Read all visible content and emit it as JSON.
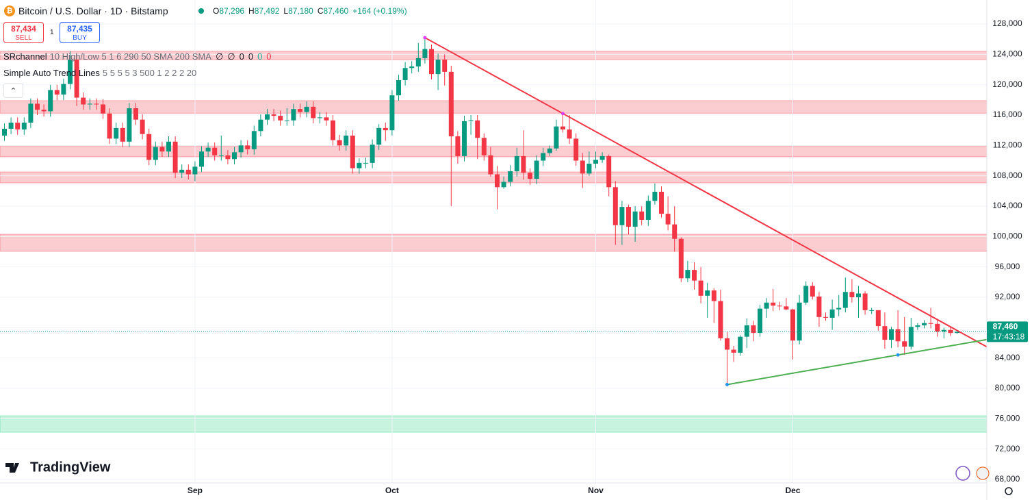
{
  "header": {
    "symbol": "Bitcoin / U.S. Dollar · 1D · Bitstamp",
    "ohlc": [
      {
        "key": "O",
        "value": "87,296"
      },
      {
        "key": "H",
        "value": "87,492"
      },
      {
        "key": "L",
        "value": "87,180"
      },
      {
        "key": "C",
        "value": "87,460"
      }
    ],
    "change": "+164 (+0.19%)"
  },
  "trading_panel": {
    "sell_price": "87,434",
    "sell": "SELL",
    "quantity": "1",
    "buy_price": "87,435",
    "buy": "BUY"
  },
  "indicators": [
    {
      "name": "SRchannel",
      "params": "10 High/Low 5 1 6 290 50 SMA 200 SMA",
      "outputs": [
        {
          "text": "∅",
          "color": "#131722"
        },
        {
          "text": "∅",
          "color": "#131722"
        },
        {
          "text": "0",
          "color": "#131722"
        },
        {
          "text": "0",
          "color": "#131722"
        },
        {
          "text": "0",
          "color": "#22ab94"
        },
        {
          "text": "0",
          "color": "#f23645"
        }
      ]
    },
    {
      "name": "Simple Auto Trend Lines",
      "params": "5 5 5 5 3 500 1 2 2 2 20",
      "outputs": []
    }
  ],
  "branding": {
    "name": "TradingView"
  },
  "chart_data": {
    "type": "candlestick",
    "up_color": "#089981",
    "down_color": "#f23645",
    "grid": true,
    "categories": [
      null,
      null,
      null,
      null,
      null,
      null,
      null,
      null,
      null,
      null,
      null,
      null,
      null,
      null,
      null,
      null,
      null,
      null,
      null,
      null,
      null,
      null,
      null,
      null,
      null,
      null,
      null,
      null,
      null,
      "Sep",
      null,
      null,
      null,
      null,
      null,
      null,
      null,
      null,
      null,
      null,
      null,
      null,
      null,
      null,
      null,
      null,
      null,
      null,
      null,
      null,
      null,
      null,
      null,
      null,
      null,
      null,
      null,
      null,
      null,
      "Oct",
      null,
      null,
      null,
      null,
      null,
      null,
      null,
      null,
      null,
      null,
      null,
      null,
      null,
      null,
      null,
      null,
      null,
      null,
      null,
      null,
      null,
      null,
      null,
      null,
      null,
      null,
      null,
      null,
      null,
      null,
      "Nov",
      null,
      null,
      null,
      null,
      null,
      null,
      null,
      null,
      null,
      null,
      null,
      null,
      null,
      null,
      null,
      null,
      null,
      null,
      null,
      null,
      null,
      null,
      null,
      null,
      null,
      null,
      null,
      null,
      null,
      "Dec",
      null,
      null,
      null,
      null,
      null,
      null,
      null,
      null,
      null,
      null,
      null,
      null,
      null,
      null,
      null,
      null,
      null,
      null,
      null,
      null,
      null,
      null,
      null,
      null,
      null
    ],
    "open": [
      113300,
      114200,
      115000,
      114100,
      115000,
      117500,
      116700,
      116500,
      119300,
      118700,
      120100,
      123300,
      118300,
      117400,
      117500,
      117400,
      116200,
      112900,
      114300,
      112500,
      116900,
      115400,
      113500,
      110100,
      111800,
      111200,
      112500,
      108400,
      108800,
      108200,
      109200,
      111200,
      111700,
      110700,
      110700,
      110200,
      111100,
      112000,
      111500,
      113900,
      115400,
      116100,
      115900,
      115300,
      115300,
      116800,
      116400,
      117100,
      115600,
      115700,
      115300,
      112700,
      112000,
      113300,
      109000,
      109700,
      109700,
      112100,
      114300,
      114000,
      118600,
      120600,
      122200,
      122400,
      123500,
      124700,
      121400,
      123300,
      121700,
      113200,
      110600,
      115200,
      115300,
      113000,
      110700,
      108200,
      106500,
      107200,
      108600,
      110600,
      108400,
      107600,
      110000,
      111000,
      111600,
      114500,
      114100,
      112900,
      110000,
      108300,
      109600,
      110100,
      110600,
      106500,
      101500,
      103900,
      101300,
      103300,
      102200,
      104700,
      105900,
      103000,
      101600,
      99700,
      94500,
      95600,
      94200,
      92200,
      92900,
      91500,
      86600,
      85100,
      84700,
      86800,
      88300,
      87300,
      90500,
      91300,
      90900,
      90800,
      90400,
      86300,
      91300,
      93500,
      92100,
      89400,
      89300,
      90400,
      90600,
      92700,
      92000,
      92500,
      90300,
      90300,
      88200,
      86400,
      87800,
      86200,
      85500,
      88100,
      88300,
      88600,
      88500,
      87500,
      87700,
      87296
    ],
    "high": [
      114900,
      115700,
      115700,
      115700,
      118200,
      118200,
      117400,
      120000,
      120000,
      120800,
      124400,
      124000,
      119000,
      118200,
      118200,
      118100,
      116900,
      115000,
      115000,
      117600,
      117600,
      116100,
      114200,
      112500,
      112500,
      113200,
      113200,
      109500,
      109500,
      109900,
      111900,
      112400,
      112400,
      113300,
      111400,
      111800,
      112700,
      112700,
      114600,
      116100,
      116800,
      116800,
      116600,
      116900,
      117500,
      117500,
      117800,
      117800,
      116400,
      116400,
      116000,
      113400,
      114000,
      114000,
      110300,
      110400,
      112800,
      114800,
      115000,
      119300,
      121300,
      123000,
      123100,
      125500,
      126200,
      125300,
      124100,
      124000,
      122500,
      113900,
      115900,
      116000,
      116000,
      113600,
      111800,
      109300,
      107900,
      109400,
      111700,
      114000,
      109000,
      110700,
      111700,
      112000,
      115400,
      116200,
      116000,
      113600,
      111000,
      111200,
      111200,
      111100,
      110800,
      107300,
      104700,
      104200,
      104000,
      104000,
      105400,
      107000,
      106600,
      105300,
      104000,
      99900,
      96800,
      96600,
      96000,
      93900,
      93200,
      93000,
      87500,
      85600,
      87000,
      89200,
      88900,
      91000,
      91900,
      93100,
      91400,
      91900,
      90500,
      92300,
      94100,
      94000,
      92700,
      90000,
      91700,
      92300,
      94600,
      94400,
      93500,
      92800,
      90600,
      90100,
      90000,
      88100,
      90300,
      89400,
      89300,
      88600,
      89000,
      90600,
      89000,
      88000,
      88100,
      87492
    ],
    "low": [
      112600,
      113500,
      113400,
      113400,
      114300,
      116000,
      115800,
      115800,
      118000,
      118000,
      119400,
      117200,
      116700,
      116700,
      116700,
      115500,
      112200,
      112200,
      111800,
      111800,
      114700,
      112800,
      109400,
      109400,
      110500,
      110500,
      107700,
      107700,
      107500,
      107300,
      108500,
      110500,
      110000,
      110000,
      109500,
      109500,
      110400,
      110800,
      110800,
      113200,
      114700,
      115200,
      114600,
      114600,
      114600,
      115700,
      115700,
      114900,
      114900,
      114600,
      112000,
      111300,
      111300,
      108300,
      108300,
      109000,
      109000,
      111400,
      112600,
      113300,
      117900,
      119900,
      121500,
      121700,
      122800,
      120700,
      119300,
      119900,
      104000,
      109600,
      109900,
      113400,
      110200,
      110000,
      107900,
      103600,
      106300,
      106600,
      107900,
      107500,
      106800,
      106900,
      109300,
      110600,
      111300,
      113700,
      112200,
      109300,
      106400,
      108000,
      109000,
      109700,
      105300,
      98900,
      98900,
      100300,
      99300,
      101500,
      101400,
      104200,
      102500,
      100800,
      98000,
      94000,
      94000,
      93000,
      91200,
      89300,
      88600,
      86300,
      80500,
      83500,
      84300,
      85300,
      86200,
      86800,
      89300,
      90200,
      90300,
      90300,
      83800,
      85800,
      91000,
      91700,
      88100,
      88900,
      87700,
      89500,
      90000,
      91300,
      89300,
      89700,
      89800,
      87600,
      85200,
      85300,
      85400,
      84400,
      85100,
      87700,
      87900,
      87900,
      86800,
      86600,
      86900,
      87180
    ],
    "close": [
      114200,
      115000,
      114100,
      115000,
      117500,
      116700,
      116500,
      119300,
      118700,
      120100,
      123300,
      118300,
      117400,
      117500,
      117400,
      116200,
      112900,
      114300,
      112500,
      116900,
      115400,
      113500,
      110100,
      111800,
      111200,
      112500,
      108400,
      108800,
      108200,
      109200,
      111200,
      111700,
      110700,
      110700,
      110200,
      111100,
      112000,
      111500,
      113900,
      115400,
      116100,
      115900,
      115300,
      115300,
      116800,
      116400,
      117100,
      115600,
      115700,
      115300,
      112700,
      112000,
      113300,
      109000,
      109700,
      109700,
      112100,
      114300,
      114000,
      118600,
      120600,
      122200,
      122400,
      123500,
      124700,
      121400,
      123300,
      121700,
      113200,
      110600,
      115200,
      115300,
      113000,
      110700,
      108200,
      106500,
      107200,
      108600,
      110600,
      108400,
      107600,
      110000,
      111000,
      111600,
      114500,
      114100,
      112900,
      110000,
      108300,
      109600,
      110100,
      110600,
      106500,
      101500,
      103900,
      101300,
      103300,
      102200,
      104700,
      105900,
      103000,
      101600,
      99700,
      94500,
      95600,
      94200,
      92200,
      92900,
      91500,
      86600,
      85100,
      84700,
      86800,
      88300,
      87300,
      90500,
      91300,
      90900,
      90800,
      90400,
      86300,
      91300,
      93500,
      92100,
      89400,
      89300,
      90400,
      90600,
      92700,
      92000,
      92500,
      90300,
      90300,
      88200,
      86400,
      87800,
      86200,
      85500,
      88100,
      88300,
      88600,
      88500,
      87500,
      87700,
      87296,
      87460
    ],
    "ylim": [
      67550,
      131160
    ],
    "yticks": [
      {
        "value": 68000,
        "label": "68,000"
      },
      {
        "value": 72000,
        "label": "72,000"
      },
      {
        "value": 76000,
        "label": "76,000"
      },
      {
        "value": 80000,
        "label": "80,000"
      },
      {
        "value": 84000,
        "label": "84,000"
      },
      {
        "value": 88000,
        "label": "88,000"
      },
      {
        "value": 92000,
        "label": "92,000"
      },
      {
        "value": 96000,
        "label": "96,000"
      },
      {
        "value": 100000,
        "label": "100,000"
      },
      {
        "value": 104000,
        "label": "104,000"
      },
      {
        "value": 108000,
        "label": "108,000"
      },
      {
        "value": 112000,
        "label": "112,000"
      },
      {
        "value": 116000,
        "label": "116,000"
      },
      {
        "value": 120000,
        "label": "120,000"
      },
      {
        "value": 124000,
        "label": "124,000"
      },
      {
        "value": 128000,
        "label": "128,000"
      }
    ],
    "zones": [
      {
        "range": [
          123300,
          124400
        ],
        "color": "#f23645"
      },
      {
        "range": [
          116250,
          117900
        ],
        "color": "#f23645"
      },
      {
        "range": [
          110500,
          111950
        ],
        "color": "#f23645"
      },
      {
        "range": [
          107070,
          108510
        ],
        "color": "#f23645"
      },
      {
        "range": [
          98050,
          100300
        ],
        "color": "#f23645"
      },
      {
        "range": [
          74220,
          76390
        ],
        "color": "#1fd17e"
      }
    ],
    "trend_lines": [
      {
        "color": "#f23645",
        "point_color": "#e040fb",
        "x": [
          64,
          85
        ],
        "values": [
          126200,
          116200
        ]
      },
      {
        "color": "#4caf50",
        "point_color": "#2196f3",
        "x": [
          110,
          136
        ],
        "values": [
          80500,
          84400
        ]
      }
    ],
    "last_price": {
      "value": 87460,
      "label": "87,460",
      "countdown": "17:43:18",
      "color": "#089981"
    }
  }
}
